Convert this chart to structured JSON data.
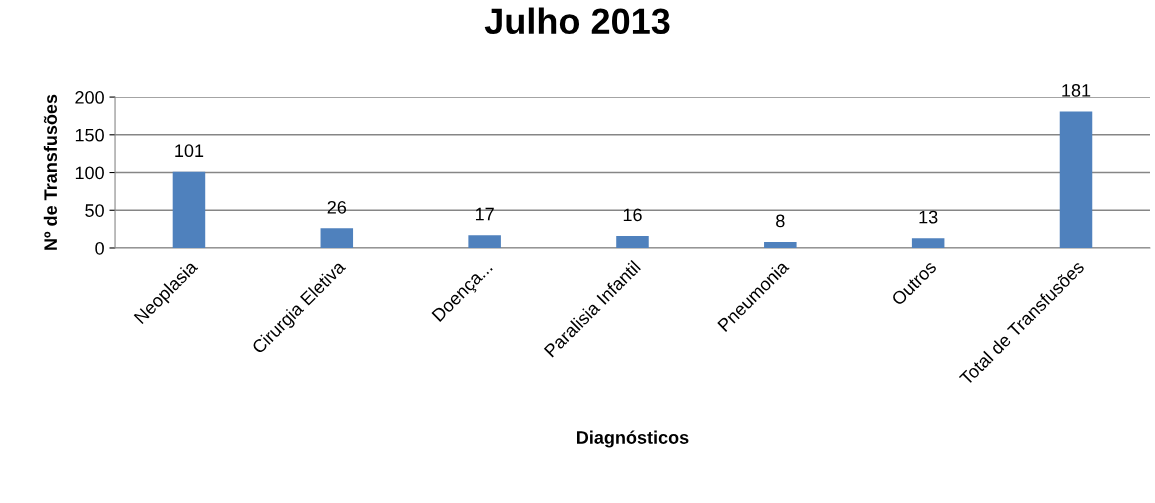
{
  "chart_data": {
    "type": "bar",
    "title": "Julho 2013",
    "xlabel": "Diagnósticos",
    "ylabel": "Nº de Transfusões",
    "categories": [
      "Neoplasia",
      "Cirurgia Eletiva",
      "Doença...",
      "Paralisia Infantil",
      "Pneumonia",
      "Outros",
      "Total de Transfusões"
    ],
    "values": [
      101,
      26,
      17,
      16,
      8,
      13,
      181
    ],
    "color": "#4f81bd",
    "ylim": [
      0,
      200
    ],
    "yticks": [
      0,
      50,
      100,
      150,
      200
    ],
    "grid": "y",
    "data_labels": true
  }
}
